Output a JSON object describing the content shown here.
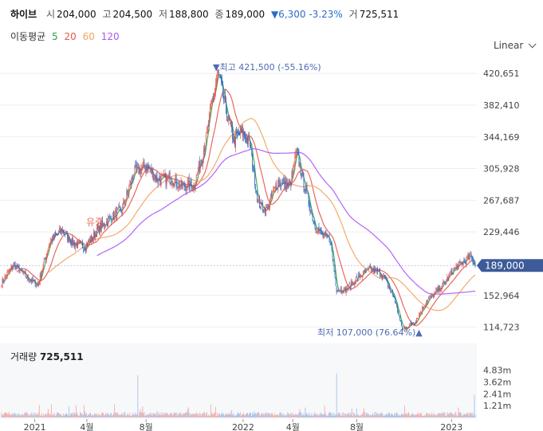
{
  "header": {
    "name": "하이브",
    "open_label": "시",
    "open": "204,000",
    "high_label": "고",
    "high": "204,500",
    "low_label": "저",
    "low": "188,800",
    "close_label": "종",
    "close": "189,000",
    "change": "▼6,300 -3.23%",
    "volume_label": "거",
    "volume": "725,511"
  },
  "ma": {
    "label": "이동평균",
    "periods": [
      "5",
      "20",
      "60",
      "120"
    ],
    "colors": [
      "#2e9e44",
      "#e8554a",
      "#f2a25c",
      "#a855f7"
    ]
  },
  "scale_toggle": {
    "label": "Linear"
  },
  "annotations": {
    "high": "▼최고 421,500 (-55.16%)",
    "low": "최저 107,000 (76.64%)▲",
    "event": "유증"
  },
  "volume_panel": {
    "label": "거래량",
    "value": "725,511"
  },
  "chart_data": {
    "type": "candlestick",
    "price_ticks": [
      "420,651",
      "382,410",
      "344,169",
      "305,928",
      "267,687",
      "229,446",
      "152,964",
      "114,723"
    ],
    "price_tick_values": [
      420651,
      382410,
      344169,
      305928,
      267687,
      229446,
      152964,
      114723
    ],
    "current_price_label": "189,000",
    "current_price": 189000,
    "volume_ticks": [
      "4.83m",
      "3.62m",
      "2.41m",
      "1.21m"
    ],
    "volume_tick_values": [
      4830000,
      3620000,
      2410000,
      1210000
    ],
    "x_ticks": [
      "2021",
      "4월",
      "8월",
      "2022",
      "4월",
      "8월",
      "2023"
    ],
    "price_range": [
      98000,
      440000
    ],
    "volume_range": [
      0,
      5600000
    ],
    "close_keyframes": [
      [
        0,
        168000
      ],
      [
        15,
        190000
      ],
      [
        30,
        176000
      ],
      [
        45,
        165000
      ],
      [
        60,
        218000
      ],
      [
        75,
        232000
      ],
      [
        90,
        215000
      ],
      [
        105,
        212000
      ],
      [
        120,
        232000
      ],
      [
        135,
        245000
      ],
      [
        150,
        255000
      ],
      [
        165,
        300000
      ],
      [
        180,
        310000
      ],
      [
        195,
        292000
      ],
      [
        210,
        295000
      ],
      [
        225,
        285000
      ],
      [
        240,
        285000
      ],
      [
        255,
        340000
      ],
      [
        262,
        385000
      ],
      [
        270,
        421000
      ],
      [
        280,
        375000
      ],
      [
        290,
        340000
      ],
      [
        300,
        350000
      ],
      [
        310,
        335000
      ],
      [
        320,
        265000
      ],
      [
        330,
        255000
      ],
      [
        345,
        290000
      ],
      [
        360,
        285000
      ],
      [
        368,
        325000
      ],
      [
        378,
        285000
      ],
      [
        390,
        240000
      ],
      [
        400,
        225000
      ],
      [
        410,
        220000
      ],
      [
        418,
        160000
      ],
      [
        430,
        160000
      ],
      [
        445,
        175000
      ],
      [
        460,
        185000
      ],
      [
        475,
        178000
      ],
      [
        490,
        150000
      ],
      [
        500,
        112000
      ],
      [
        515,
        120000
      ],
      [
        530,
        145000
      ],
      [
        550,
        165000
      ],
      [
        565,
        185000
      ],
      [
        575,
        192000
      ],
      [
        585,
        200000
      ],
      [
        591,
        189000
      ]
    ],
    "colors": {
      "up": "#e8554a",
      "down": "#2d6cc9",
      "volume_up": "#f3a39d",
      "volume_down": "#9dbbe6",
      "accent": "#4d6bb5"
    }
  }
}
